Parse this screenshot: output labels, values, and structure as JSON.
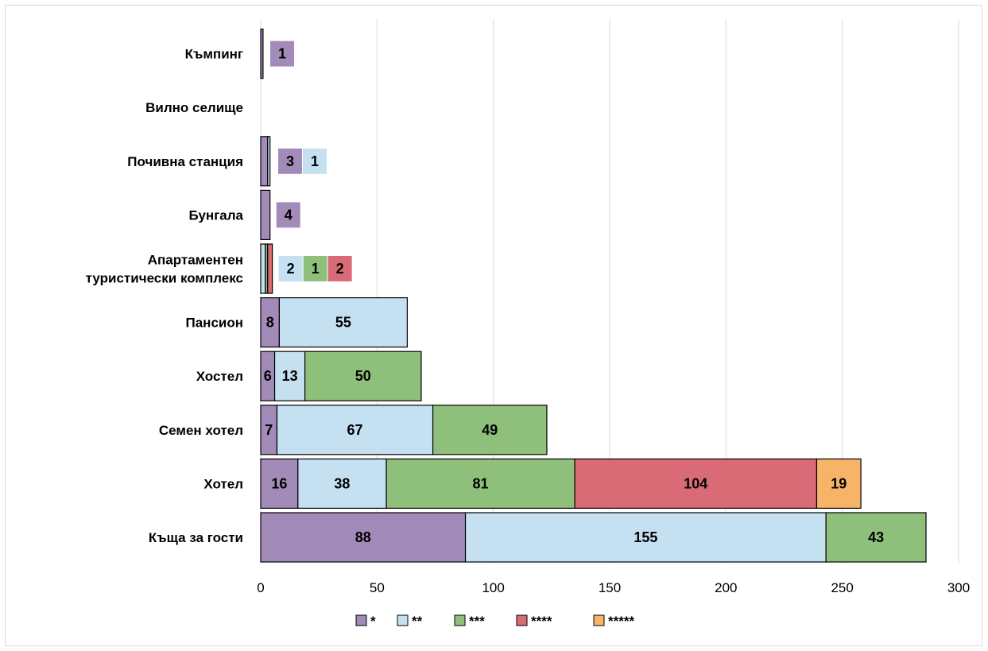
{
  "chart_data": {
    "type": "bar",
    "orientation": "horizontal",
    "stacked": true,
    "title": "",
    "xlabel": "",
    "ylabel": "",
    "xlim": [
      0,
      300
    ],
    "xticks": [
      "0",
      "50",
      "100",
      "150",
      "200",
      "250",
      "300"
    ],
    "grid": true,
    "legend_position": "bottom",
    "categories": [
      "Къща за гости",
      "Хотел",
      "Семен хотел",
      "Хостел",
      "Пансион",
      "Апартаментен туристически комплекс",
      "Бунгала",
      "Почивна станция",
      "Вилно селище",
      "Къмпинг"
    ],
    "category_lines": [
      [
        "Къща за гости"
      ],
      [
        "Хотел"
      ],
      [
        "Семен хотел"
      ],
      [
        "Хостел"
      ],
      [
        "Пансион"
      ],
      [
        "Апартаментен",
        "туристически комплекс"
      ],
      [
        "Бунгала"
      ],
      [
        "Почивна станция"
      ],
      [
        "Вилно селище"
      ],
      [
        "Къмпинг"
      ]
    ],
    "series": [
      {
        "name": "*",
        "color": "#a28ab9",
        "values": [
          88,
          16,
          7,
          6,
          8,
          0,
          4,
          3,
          0,
          1
        ]
      },
      {
        "name": "**",
        "color": "#c5e0f0",
        "values": [
          155,
          38,
          67,
          13,
          55,
          2,
          0,
          1,
          0,
          0
        ]
      },
      {
        "name": "***",
        "color": "#8ec07c",
        "values": [
          43,
          81,
          49,
          50,
          0,
          1,
          0,
          0,
          0,
          0
        ]
      },
      {
        "name": "****",
        "color": "#d96b76",
        "values": [
          0,
          104,
          0,
          0,
          0,
          2,
          0,
          0,
          0,
          0
        ]
      },
      {
        "name": "*****",
        "color": "#f7b469",
        "values": [
          0,
          19,
          0,
          0,
          0,
          0,
          0,
          0,
          0,
          0
        ]
      }
    ],
    "special_colors": {
      "Вилно селище": "#f08a11"
    }
  }
}
